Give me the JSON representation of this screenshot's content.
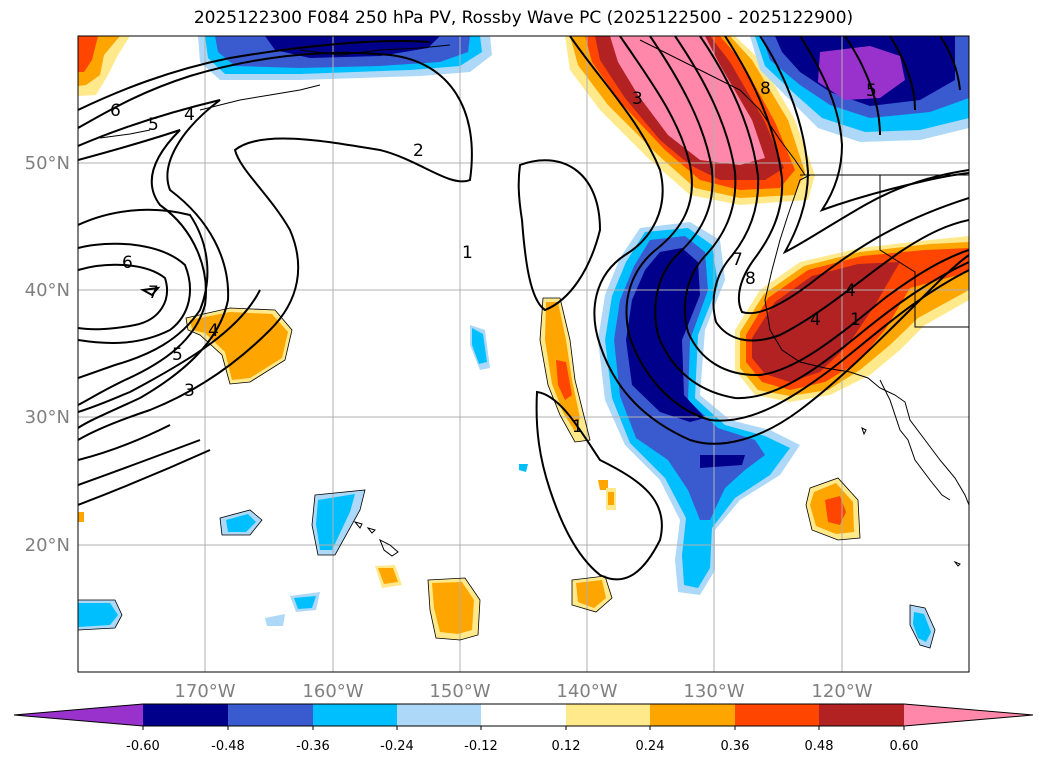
{
  "title": "2025122300 F084 250 hPa PV, Rossby Wave PC (2025122500 - 2025122900)",
  "map": {
    "lon_range": [
      -180,
      -110
    ],
    "lat_range": [
      10,
      60
    ],
    "lon_ticks": [
      {
        "value": -170,
        "label": "170°W"
      },
      {
        "value": -160,
        "label": "160°W"
      },
      {
        "value": -150,
        "label": "150°W"
      },
      {
        "value": -140,
        "label": "140°W"
      },
      {
        "value": -130,
        "label": "130°W"
      },
      {
        "value": -120,
        "label": "120°W"
      }
    ],
    "lat_ticks": [
      {
        "value": 20,
        "label": "20°N"
      },
      {
        "value": 30,
        "label": "30°N"
      },
      {
        "value": 40,
        "label": "40°N"
      },
      {
        "value": 50,
        "label": "50°N"
      }
    ],
    "grid": true,
    "tick_label_color": "#808080",
    "contour_labels": [
      "6",
      "5",
      "4",
      "2",
      "1",
      "6",
      "7",
      "5",
      "4",
      "3",
      "1",
      "3",
      "8",
      "7",
      "8",
      "5",
      "4",
      "1",
      "4"
    ]
  },
  "colorbar": {
    "levels": [
      "-0.60",
      "-0.48",
      "-0.36",
      "-0.24",
      "-0.12",
      "0.12",
      "0.24",
      "0.36",
      "0.48",
      "0.60"
    ],
    "colors": [
      "#9932cc",
      "#00008b",
      "#3a5bd0",
      "#00bfff",
      "#add8f7",
      "#ffffff",
      "#ffe98a",
      "#ffa500",
      "#ff4500",
      "#b22222",
      "#ff88aa"
    ],
    "extend": "both"
  }
}
